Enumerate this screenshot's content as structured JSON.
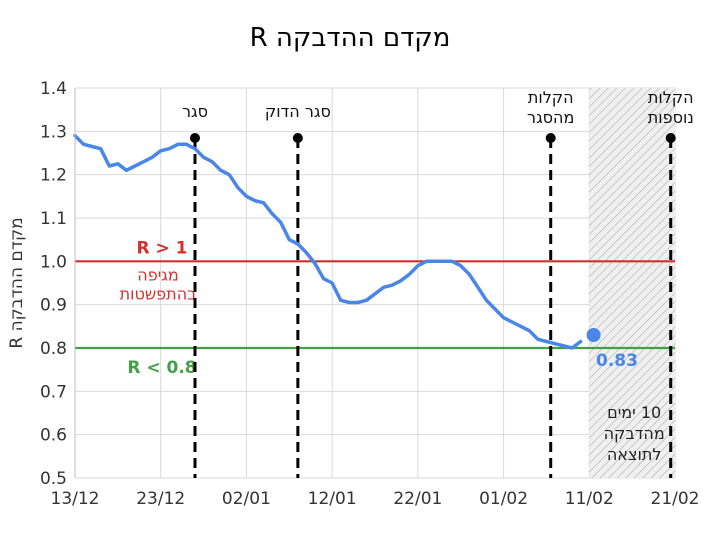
{
  "chart_data": {
    "type": "line",
    "title": "מקדם ההדבקה R",
    "ylabel": "מקדם ההדבקה R",
    "xlabel": "",
    "ylim": [
      0.5,
      1.4
    ],
    "yticks": [
      "0.5",
      "0.6",
      "0.7",
      "0.8",
      "0.9",
      "1.0",
      "1.1",
      "1.2",
      "1.3",
      "1.4"
    ],
    "xlim_days": [
      0,
      70
    ],
    "xticks": [
      {
        "day": 0,
        "label": "13/12"
      },
      {
        "day": 10,
        "label": "23/12"
      },
      {
        "day": 20,
        "label": "02/01"
      },
      {
        "day": 30,
        "label": "12/01"
      },
      {
        "day": 40,
        "label": "22/01"
      },
      {
        "day": 50,
        "label": "01/02"
      },
      {
        "day": 60,
        "label": "11/02"
      },
      {
        "day": 70,
        "label": "21/02"
      }
    ],
    "grid": true,
    "series": [
      {
        "name": "",
        "color": "#4a86e8",
        "x": [
          0,
          1,
          2,
          3,
          4,
          5,
          6,
          7,
          8,
          9,
          10,
          11,
          12,
          13,
          14,
          15,
          16,
          17,
          18,
          19,
          20,
          21,
          22,
          23,
          24,
          25,
          26,
          27,
          28,
          29,
          30,
          31,
          32,
          33,
          34,
          35,
          36,
          37,
          38,
          39,
          40,
          41,
          42,
          43,
          44,
          45,
          46,
          47,
          48,
          49,
          50,
          51,
          52,
          53,
          54,
          55,
          56,
          57,
          58,
          59
        ],
        "values": [
          1.29,
          1.27,
          1.265,
          1.26,
          1.22,
          1.225,
          1.21,
          1.22,
          1.23,
          1.24,
          1.255,
          1.26,
          1.27,
          1.27,
          1.26,
          1.24,
          1.23,
          1.21,
          1.2,
          1.17,
          1.15,
          1.14,
          1.135,
          1.11,
          1.09,
          1.05,
          1.04,
          1.02,
          0.995,
          0.96,
          0.95,
          0.91,
          0.905,
          0.905,
          0.91,
          0.925,
          0.94,
          0.945,
          0.955,
          0.97,
          0.99,
          1.0,
          1.0,
          1.0,
          1.0,
          0.99,
          0.97,
          0.94,
          0.91,
          0.89,
          0.87,
          0.86,
          0.85,
          0.84,
          0.82,
          0.815,
          0.81,
          0.805,
          0.8,
          0.815
        ]
      }
    ],
    "latest_point": {
      "day": 60.5,
      "value": 0.83,
      "label": "0.83",
      "color": "#4a86e8"
    },
    "reference_lines": [
      {
        "value": 1.0,
        "color": "#d32f2f",
        "label": "R > 1",
        "sublabel_1": "מגיפה",
        "sublabel_2": "בהתפשטות"
      },
      {
        "value": 0.8,
        "color": "#43a047",
        "label": "R < 0.8"
      }
    ],
    "events": [
      {
        "day": 14,
        "label_lines": [
          "סגר"
        ]
      },
      {
        "day": 26,
        "label_lines": [
          "סגר הדוק"
        ]
      },
      {
        "day": 55.5,
        "label_lines": [
          "הקלות",
          "מהסגר"
        ]
      },
      {
        "day": 69.5,
        "label_lines": [
          "הקלות",
          "נוספות"
        ]
      }
    ],
    "shaded_region": {
      "from_day": 60,
      "to_day": 70,
      "label_lines": [
        "10 ימים",
        "מהדבקה",
        "לתוצאה"
      ]
    }
  }
}
